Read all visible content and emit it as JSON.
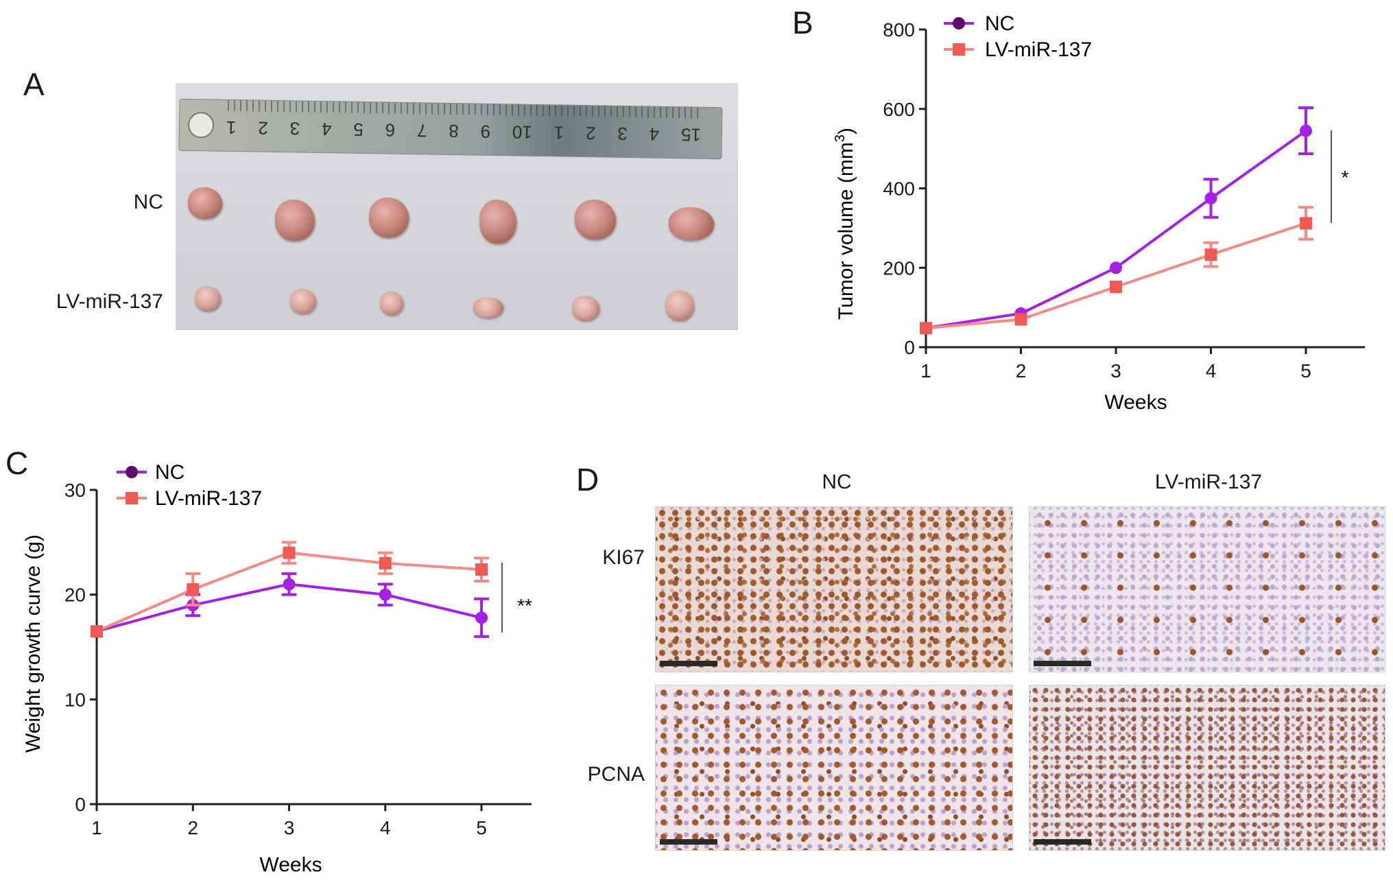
{
  "panels": {
    "a": {
      "letter": "A",
      "row_labels": [
        "NC",
        "LV-miR-137"
      ],
      "ruler_numbers": [
        "15",
        "4",
        "3",
        "2",
        "1",
        "10",
        "9",
        "8",
        "7",
        "6",
        "5",
        "4",
        "3",
        "2",
        "1"
      ]
    },
    "b": {
      "letter": "B"
    },
    "c": {
      "letter": "C"
    },
    "d": {
      "letter": "D",
      "col_labels": [
        "NC",
        "LV-miR-137"
      ],
      "row_labels": [
        "KI67",
        "PCNA"
      ]
    }
  },
  "colors": {
    "nc_line": "#a51fe6",
    "nc_marker": "#5e0a6c",
    "lv_line": "#f48a82",
    "lv_marker": "#f15a52",
    "axis": "#222222"
  },
  "chart_data": [
    {
      "panel": "B",
      "type": "line",
      "x": [
        1,
        2,
        3,
        4,
        5
      ],
      "xlabel": "Weeks",
      "ylabel": "Tumor volume (mm",
      "ylabel_sup": "3",
      "ylabel_tail": ")",
      "ylim": [
        0,
        800
      ],
      "yticks": [
        0,
        200,
        400,
        600,
        800
      ],
      "series": [
        {
          "name": "NC",
          "values": [
            48,
            85,
            200,
            375,
            545
          ],
          "errors": [
            0,
            0,
            0,
            48,
            58
          ],
          "marker": "circle"
        },
        {
          "name": "LV-miR-137",
          "values": [
            48,
            70,
            152,
            233,
            312
          ],
          "errors": [
            0,
            0,
            0,
            30,
            40
          ],
          "marker": "square"
        }
      ],
      "significance": "*",
      "legend": "top-left"
    },
    {
      "panel": "C",
      "type": "line",
      "x": [
        1,
        2,
        3,
        4,
        5
      ],
      "xlabel": "Weeks",
      "ylabel": "Weight growth curve (g)",
      "ylim": [
        0,
        30
      ],
      "yticks": [
        0,
        10,
        20,
        30
      ],
      "series": [
        {
          "name": "NC",
          "values": [
            16.5,
            19.0,
            21.0,
            20.0,
            17.8
          ],
          "errors": [
            0,
            1.0,
            1.0,
            1.0,
            1.8
          ],
          "marker": "circle"
        },
        {
          "name": "LV-miR-137",
          "values": [
            16.5,
            20.5,
            24.0,
            23.0,
            22.4
          ],
          "errors": [
            0,
            1.5,
            1.0,
            1.0,
            1.1
          ],
          "marker": "square"
        }
      ],
      "significance": "**",
      "legend": "top-left"
    }
  ]
}
